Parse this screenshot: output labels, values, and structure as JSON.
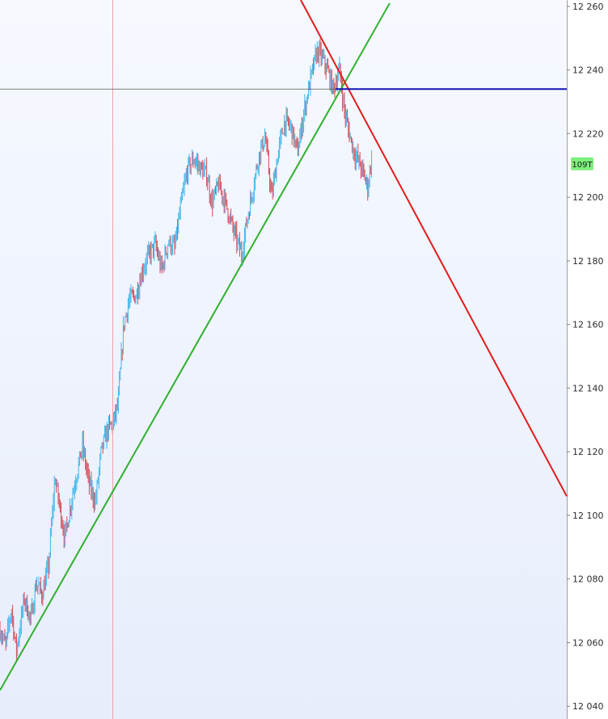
{
  "chart_data": {
    "type": "candlestick",
    "title": "",
    "xlabel": "",
    "ylabel": "",
    "ylim": [
      12036,
      12262
    ],
    "grid": false,
    "y_ticks": [
      12040,
      12060,
      12080,
      12100,
      12120,
      12140,
      12160,
      12180,
      12200,
      12220,
      12240,
      12260
    ],
    "y_tick_labels": [
      "12 040",
      "12 060",
      "12 080",
      "12 100",
      "12 120",
      "12 140",
      "12 160",
      "12 180",
      "12 200",
      "12 220",
      "12 240",
      "12 260"
    ],
    "current_price_badge": {
      "label": "109T",
      "value": 12210.5,
      "color": "#7cf07c"
    },
    "up_color": "#3fb6ea",
    "down_color": "#d04a55",
    "price_path": [
      [
        0,
        12064
      ],
      [
        7,
        12059
      ],
      [
        14,
        12071
      ],
      [
        20,
        12057
      ],
      [
        30,
        12074
      ],
      [
        38,
        12067
      ],
      [
        45,
        12079
      ],
      [
        52,
        12075
      ],
      [
        60,
        12084
      ],
      [
        68,
        12112
      ],
      [
        80,
        12093
      ],
      [
        90,
        12107
      ],
      [
        102,
        12122
      ],
      [
        110,
        12110
      ],
      [
        118,
        12104
      ],
      [
        125,
        12120
      ],
      [
        133,
        12127
      ],
      [
        140,
        12129
      ],
      [
        146,
        12135
      ],
      [
        153,
        12160
      ],
      [
        160,
        12168
      ],
      [
        168,
        12169
      ],
      [
        176,
        12177
      ],
      [
        184,
        12182
      ],
      [
        192,
        12185
      ],
      [
        200,
        12177
      ],
      [
        208,
        12186
      ],
      [
        216,
        12184
      ],
      [
        224,
        12198
      ],
      [
        232,
        12209
      ],
      [
        240,
        12212
      ],
      [
        248,
        12209
      ],
      [
        256,
        12207
      ],
      [
        262,
        12198
      ],
      [
        270,
        12204
      ],
      [
        278,
        12199
      ],
      [
        286,
        12192
      ],
      [
        292,
        12187
      ],
      [
        299,
        12182
      ],
      [
        305,
        12192
      ],
      [
        313,
        12203
      ],
      [
        320,
        12213
      ],
      [
        328,
        12219
      ],
      [
        336,
        12200
      ],
      [
        344,
        12214
      ],
      [
        352,
        12224
      ],
      [
        360,
        12222
      ],
      [
        368,
        12214
      ],
      [
        376,
        12227
      ],
      [
        384,
        12237
      ],
      [
        392,
        12246
      ],
      [
        398,
        12244
      ],
      [
        405,
        12240
      ],
      [
        412,
        12234
      ],
      [
        420,
        12240
      ],
      [
        426,
        12227
      ],
      [
        432,
        12220
      ],
      [
        438,
        12214
      ],
      [
        444,
        12211
      ],
      [
        450,
        12207
      ],
      [
        455,
        12203
      ],
      [
        460,
        12214
      ]
    ],
    "trendlines": [
      {
        "name": "support",
        "color": "#2fb02f",
        "start": {
          "time": 0,
          "price": 12045
        },
        "end": {
          "time": 482,
          "price": 12261
        }
      },
      {
        "name": "resistance",
        "color": "#e21b1b",
        "start": {
          "time": 372,
          "price": 12262
        },
        "end": {
          "time": 701,
          "price": 12106
        }
      },
      {
        "name": "level",
        "color": "#1414b4",
        "start": {
          "time": 415,
          "price": 12234
        },
        "end": {
          "time": 701,
          "price": 12234
        }
      }
    ],
    "crosshair": {
      "time": 139,
      "price": 12234
    }
  }
}
